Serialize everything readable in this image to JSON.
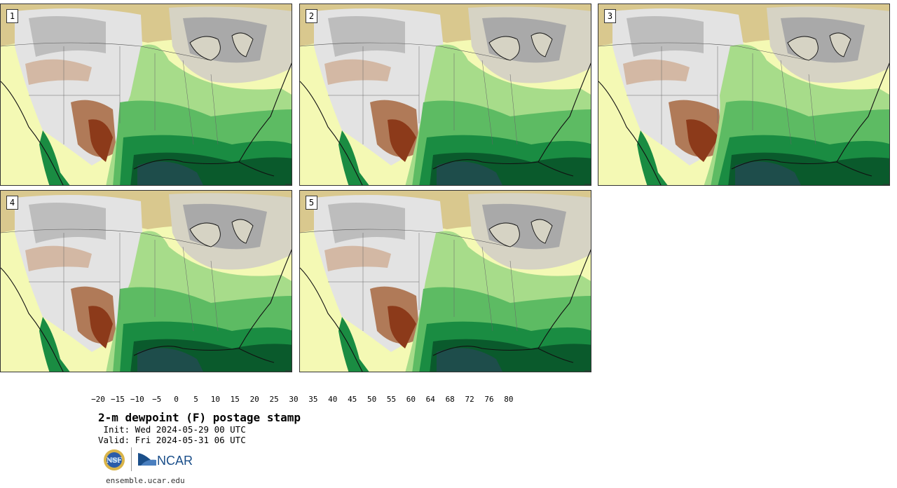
{
  "panels": [
    {
      "label": "1"
    },
    {
      "label": "2"
    },
    {
      "label": "3"
    },
    {
      "label": "4"
    },
    {
      "label": "5"
    }
  ],
  "legend": {
    "colors": [
      "#f3e4e4",
      "#d4a0a0",
      "#b05b5b",
      "#8c1a1a",
      "#8b4513",
      "#b07a58",
      "#c9a086",
      "#e0c4b0",
      "#eeeeee",
      "#dcdcdc",
      "#bdbdbd",
      "#dedcd0",
      "#e2d3a8",
      "#d4b877",
      "#fafcd8",
      "#f4f9b4",
      "#a7dc8a",
      "#5dbb63",
      "#1a8c42",
      "#0a5a2c",
      "#1e4d4b",
      "#4e7877"
    ],
    "ticks": [
      "−20",
      "−15",
      "−10",
      "−5",
      "0",
      "5",
      "10",
      "15",
      "20",
      "25",
      "30",
      "35",
      "40",
      "45",
      "50",
      "55",
      "60",
      "64",
      "68",
      "72",
      "76",
      "80"
    ]
  },
  "title": "2-m dewpoint (F) postage stamp",
  "init_line": " Init: Wed 2024-05-29 00 UTC",
  "valid_line": "Valid: Fri 2024-05-31 06 UTC",
  "logos": {
    "nsf": "NSF",
    "ncar": "NCAR"
  },
  "website": "ensemble.ucar.edu",
  "icons": {
    "nsf": "nsf-globe-logo",
    "ncar": "ncar-wave-logo"
  }
}
